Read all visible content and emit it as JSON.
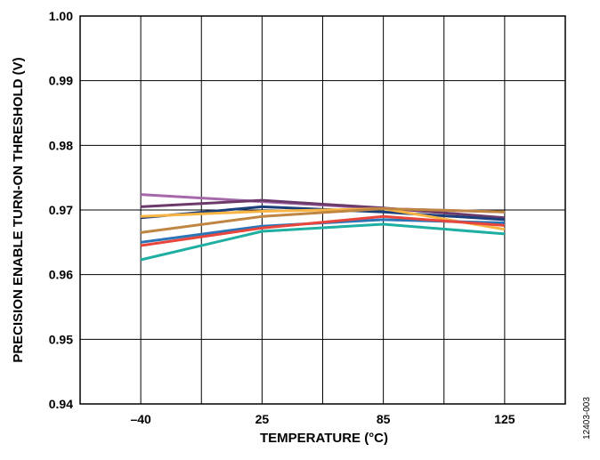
{
  "chart_data": {
    "type": "line",
    "xlabel": "TEMPERATURE (°C)",
    "ylabel": "PRECISION ENABLE TURN-ON THRESHOLD (V)",
    "x": [
      -40,
      25,
      85,
      125
    ],
    "x_tick_labels": [
      "–40",
      "25",
      "85",
      "125"
    ],
    "y_tick_labels": [
      "0.94",
      "0.95",
      "0.96",
      "0.97",
      "0.98",
      "0.99",
      "1.00"
    ],
    "ylim": [
      0.94,
      1.0
    ],
    "grid": true,
    "figure_code": "12403-003",
    "series": [
      {
        "color": "#A569A9",
        "values": [
          0.9724,
          0.9713,
          0.9702,
          0.9697
        ]
      },
      {
        "color": "#6B3A6B",
        "values": [
          0.9705,
          0.9715,
          0.9703,
          0.9688
        ]
      },
      {
        "color": "#1B3F7A",
        "values": [
          0.9688,
          0.9705,
          0.9697,
          0.9685
        ]
      },
      {
        "color": "#F9B544",
        "values": [
          0.969,
          0.9698,
          0.9702,
          0.967
        ]
      },
      {
        "color": "#BF8542",
        "values": [
          0.9665,
          0.969,
          0.9702,
          0.9697
        ]
      },
      {
        "color": "#2A74B8",
        "values": [
          0.965,
          0.9675,
          0.9685,
          0.968
        ]
      },
      {
        "color": "#E8463C",
        "values": [
          0.9645,
          0.9672,
          0.969,
          0.9676
        ]
      },
      {
        "color": "#1FAFA2",
        "values": [
          0.9623,
          0.9667,
          0.9678,
          0.9663
        ]
      }
    ]
  }
}
